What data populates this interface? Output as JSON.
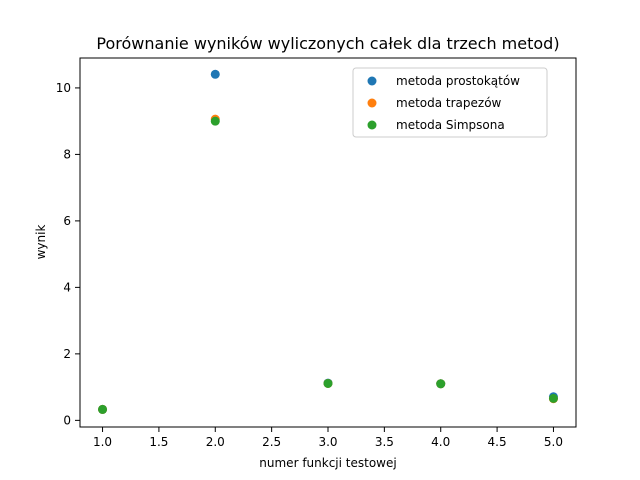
{
  "chart_data": {
    "type": "scatter",
    "title": "Porównanie wyników wyliczonych całek dla trzech metod)",
    "xlabel": "numer funkcji testowej",
    "ylabel": "wynik",
    "xlim": [
      0.8,
      5.2
    ],
    "ylim": [
      -0.2,
      10.9
    ],
    "x_ticks": [
      1.0,
      1.5,
      2.0,
      2.5,
      3.0,
      3.5,
      4.0,
      4.5,
      5.0
    ],
    "x_tick_labels": [
      "1.0",
      "1.5",
      "2.0",
      "2.5",
      "3.0",
      "3.5",
      "4.0",
      "4.5",
      "5.0"
    ],
    "y_ticks": [
      0,
      2,
      4,
      6,
      8,
      10
    ],
    "y_tick_labels": [
      "0",
      "2",
      "4",
      "6",
      "8",
      "10"
    ],
    "grid": false,
    "legend_position": "upper-right",
    "series": [
      {
        "name": "metoda prostokątów",
        "color": "#1f77b4",
        "x": [
          1,
          2,
          3,
          4,
          5
        ],
        "y": [
          0.33,
          10.41,
          1.12,
          1.1,
          0.71
        ]
      },
      {
        "name": "metoda trapezów",
        "color": "#ff7f0e",
        "x": [
          1,
          2,
          3,
          4,
          5
        ],
        "y": [
          0.33,
          9.06,
          1.11,
          1.1,
          0.65
        ]
      },
      {
        "name": "metoda Simpsona",
        "color": "#2ca02c",
        "x": [
          1,
          2,
          3,
          4,
          5
        ],
        "y": [
          0.33,
          9.0,
          1.11,
          1.1,
          0.66
        ]
      }
    ]
  }
}
